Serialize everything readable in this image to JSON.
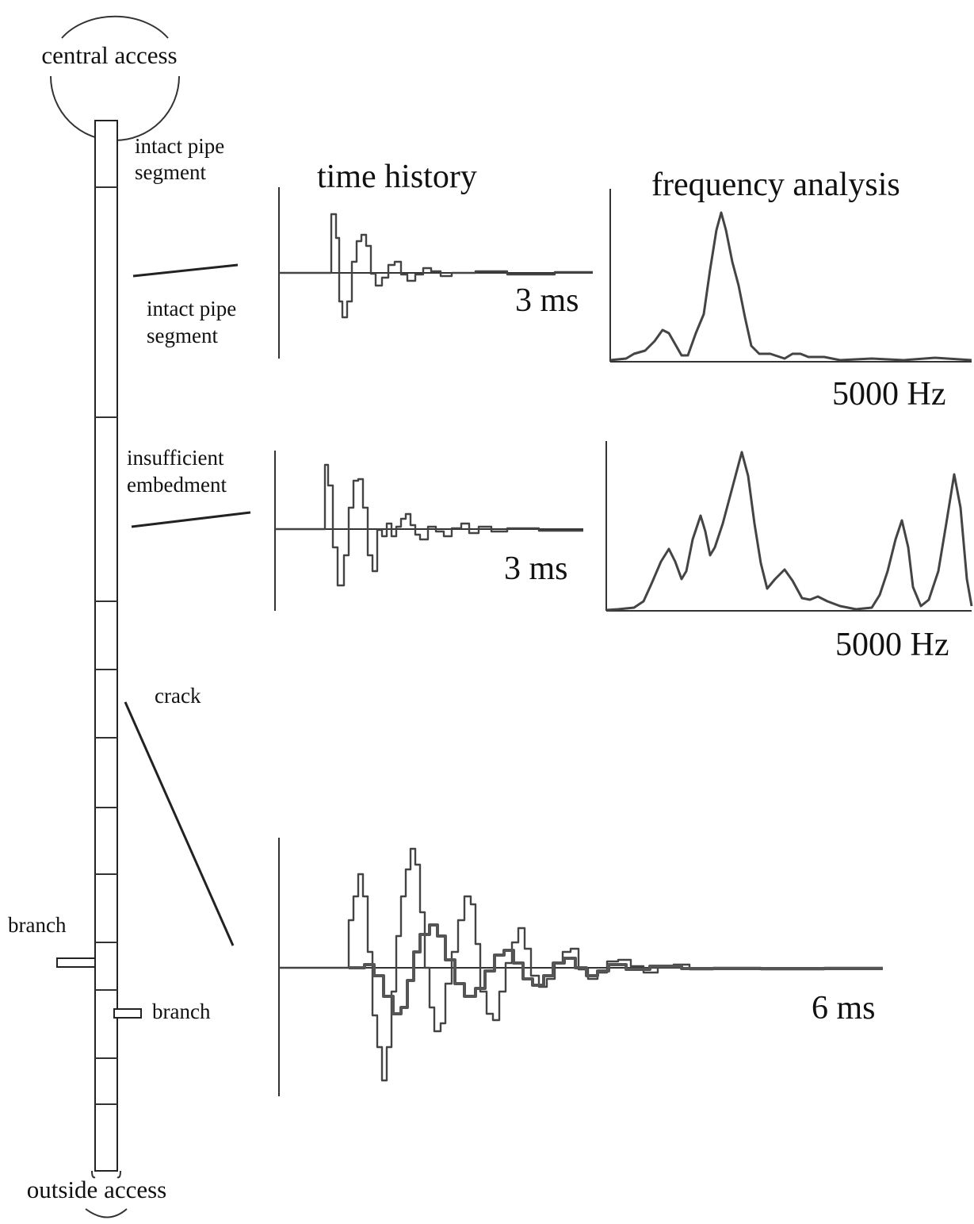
{
  "pipe": {
    "top_label": "central access",
    "bottom_label": "outside access",
    "segment_labels": [
      "intact pipe\nsegment",
      "intact pipe\nsegment",
      "insufficient\nembedment",
      "crack"
    ],
    "branch_labels": [
      "branch",
      "branch"
    ]
  },
  "headers": {
    "time": "time history",
    "frequency": "frequency analysis"
  },
  "charts": {
    "t1_end": "3 ms",
    "t2_end": "3 ms",
    "t3_end": "6 ms",
    "f1_end": "5000 Hz",
    "f2_end": "5000 Hz"
  }
}
